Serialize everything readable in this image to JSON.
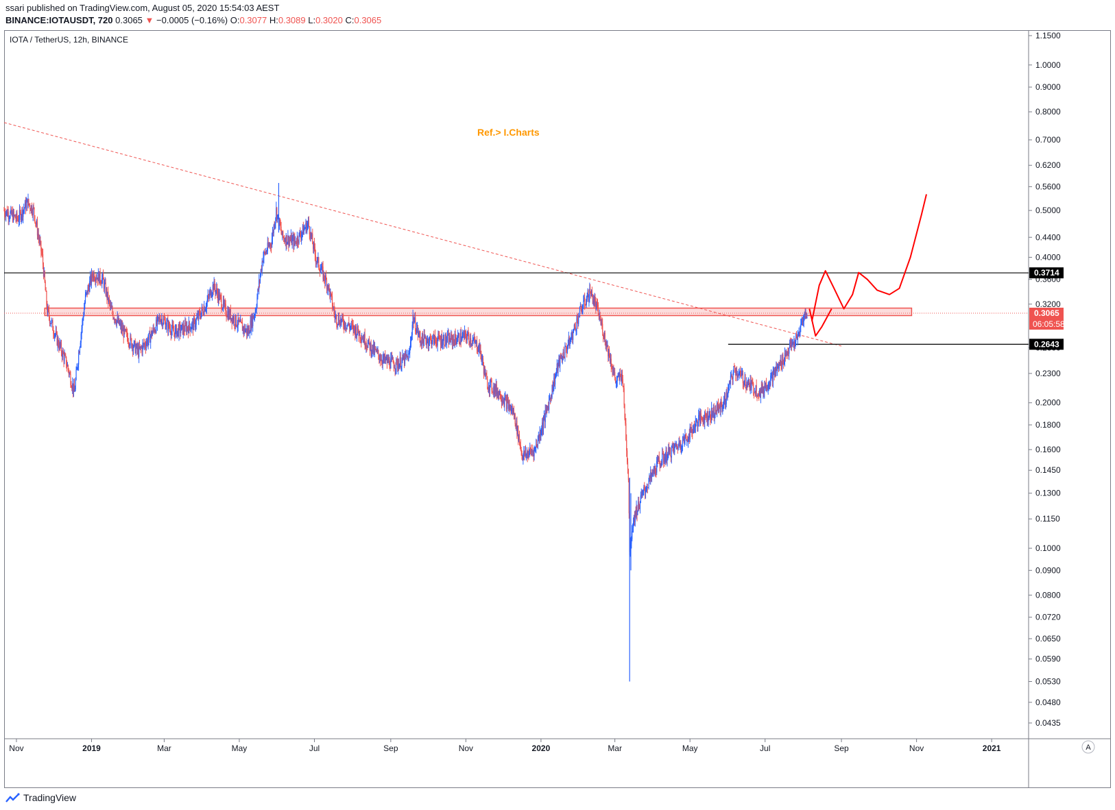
{
  "header": {
    "published": "ssari published on TradingView.com, August 05, 2020 15:54:03 AEST",
    "symbol": "BINANCE:IOTAUSDT, 720",
    "last": "0.3065",
    "change_arrow": "▼",
    "change": "−0.0005 (−0.16%)",
    "o_label": "O:",
    "o_value": "0.3077",
    "h_label": "H:",
    "h_value": "0.3089",
    "l_label": "L:",
    "l_value": "0.3020",
    "c_label": "C:",
    "c_value": "0.3065"
  },
  "footer": {
    "brand": "TradingView"
  },
  "chart_data": {
    "type": "candlestick",
    "title": "IOTA / TetherUS, 12h, BINANCE",
    "annotation": "Ref.> I.Charts",
    "yscale": "log",
    "ylim": [
      0.04,
      1.2
    ],
    "y_ticks": [
      "1.1500",
      "1.0000",
      "0.9000",
      "0.8000",
      "0.7000",
      "0.6200",
      "0.5600",
      "0.5000",
      "0.4400",
      "0.4000",
      "0.3600",
      "0.3200",
      "0.2600",
      "0.2300",
      "0.2000",
      "0.1800",
      "0.1600",
      "0.1450",
      "0.1300",
      "0.1150",
      "0.1000",
      "0.0900",
      "0.0800",
      "0.0720",
      "0.0650",
      "0.0590",
      "0.0530",
      "0.0480",
      "0.0435"
    ],
    "y_tick_values": [
      1.15,
      1.0,
      0.9,
      0.8,
      0.7,
      0.62,
      0.56,
      0.5,
      0.44,
      0.4,
      0.36,
      0.32,
      0.26,
      0.23,
      0.2,
      0.18,
      0.16,
      0.145,
      0.13,
      0.115,
      0.1,
      0.09,
      0.08,
      0.072,
      0.065,
      0.059,
      0.053,
      0.048,
      0.0435
    ],
    "x_ticks": [
      {
        "label": "Nov",
        "date": "2018-11-01",
        "bold": false
      },
      {
        "label": "2019",
        "date": "2019-01-01",
        "bold": true
      },
      {
        "label": "Mar",
        "date": "2019-03-01",
        "bold": false
      },
      {
        "label": "May",
        "date": "2019-05-01",
        "bold": false
      },
      {
        "label": "Jul",
        "date": "2019-07-01",
        "bold": false
      },
      {
        "label": "Sep",
        "date": "2019-09-01",
        "bold": false
      },
      {
        "label": "Nov",
        "date": "2019-11-01",
        "bold": false
      },
      {
        "label": "2020",
        "date": "2020-01-01",
        "bold": true
      },
      {
        "label": "Mar",
        "date": "2020-03-01",
        "bold": false
      },
      {
        "label": "May",
        "date": "2020-05-01",
        "bold": false
      },
      {
        "label": "Jul",
        "date": "2020-07-01",
        "bold": false
      },
      {
        "label": "Sep",
        "date": "2020-09-01",
        "bold": false
      },
      {
        "label": "Nov",
        "date": "2020-11-01",
        "bold": false
      },
      {
        "label": "2021",
        "date": "2021-01-01",
        "bold": true
      }
    ],
    "x_range": [
      "2018-10-22",
      "2021-01-31"
    ],
    "price_path": [
      [
        "2018-10-22",
        0.5
      ],
      [
        "2018-11-02",
        0.48
      ],
      [
        "2018-11-10",
        0.52
      ],
      [
        "2018-11-15",
        0.5
      ],
      [
        "2018-11-22",
        0.4
      ],
      [
        "2018-11-26",
        0.31
      ],
      [
        "2018-12-04",
        0.27
      ],
      [
        "2018-12-12",
        0.24
      ],
      [
        "2018-12-18",
        0.21
      ],
      [
        "2018-12-22",
        0.26
      ],
      [
        "2018-12-27",
        0.33
      ],
      [
        "2019-01-02",
        0.37
      ],
      [
        "2019-01-10",
        0.36
      ],
      [
        "2019-01-17",
        0.31
      ],
      [
        "2019-01-27",
        0.28
      ],
      [
        "2019-02-08",
        0.255
      ],
      [
        "2019-02-16",
        0.27
      ],
      [
        "2019-02-26",
        0.3
      ],
      [
        "2019-03-09",
        0.28
      ],
      [
        "2019-03-25",
        0.29
      ],
      [
        "2019-04-04",
        0.32
      ],
      [
        "2019-04-10",
        0.35
      ],
      [
        "2019-04-20",
        0.31
      ],
      [
        "2019-05-01",
        0.29
      ],
      [
        "2019-05-08",
        0.28
      ],
      [
        "2019-05-14",
        0.31
      ],
      [
        "2019-05-20",
        0.4
      ],
      [
        "2019-05-27",
        0.43
      ],
      [
        "2019-05-31",
        0.5
      ],
      [
        "2019-06-05",
        0.44
      ],
      [
        "2019-06-15",
        0.43
      ],
      [
        "2019-06-26",
        0.47
      ],
      [
        "2019-07-02",
        0.4
      ],
      [
        "2019-07-12",
        0.35
      ],
      [
        "2019-07-18",
        0.3
      ],
      [
        "2019-07-28",
        0.29
      ],
      [
        "2019-08-06",
        0.28
      ],
      [
        "2019-08-16",
        0.26
      ],
      [
        "2019-08-26",
        0.245
      ],
      [
        "2019-09-06",
        0.24
      ],
      [
        "2019-09-16",
        0.25
      ],
      [
        "2019-09-19",
        0.3
      ],
      [
        "2019-09-25",
        0.27
      ],
      [
        "2019-10-08",
        0.27
      ],
      [
        "2019-10-22",
        0.27
      ],
      [
        "2019-11-02",
        0.275
      ],
      [
        "2019-11-12",
        0.26
      ],
      [
        "2019-11-18",
        0.22
      ],
      [
        "2019-11-28",
        0.21
      ],
      [
        "2019-12-10",
        0.19
      ],
      [
        "2019-12-17",
        0.155
      ],
      [
        "2019-12-27",
        0.16
      ],
      [
        "2020-01-05",
        0.19
      ],
      [
        "2020-01-15",
        0.24
      ],
      [
        "2020-01-25",
        0.27
      ],
      [
        "2020-02-02",
        0.31
      ],
      [
        "2020-02-10",
        0.34
      ],
      [
        "2020-02-16",
        0.31
      ],
      [
        "2020-02-24",
        0.26
      ],
      [
        "2020-03-02",
        0.22
      ],
      [
        "2020-03-07",
        0.23
      ],
      [
        "2020-03-12",
        0.14
      ],
      [
        "2020-03-13",
        0.1
      ],
      [
        "2020-03-16",
        0.115
      ],
      [
        "2020-03-24",
        0.13
      ],
      [
        "2020-04-05",
        0.15
      ],
      [
        "2020-04-17",
        0.16
      ],
      [
        "2020-04-29",
        0.17
      ],
      [
        "2020-05-08",
        0.185
      ],
      [
        "2020-05-19",
        0.19
      ],
      [
        "2020-05-29",
        0.2
      ],
      [
        "2020-06-06",
        0.235
      ],
      [
        "2020-06-16",
        0.22
      ],
      [
        "2020-06-27",
        0.21
      ],
      [
        "2020-07-06",
        0.225
      ],
      [
        "2020-07-13",
        0.24
      ],
      [
        "2020-07-21",
        0.26
      ],
      [
        "2020-07-27",
        0.27
      ],
      [
        "2020-08-01",
        0.3
      ],
      [
        "2020-08-04",
        0.3065
      ]
    ],
    "spikes": [
      {
        "date": "2020-03-13",
        "low": 0.053,
        "high": 0.14
      },
      {
        "date": "2020-03-14",
        "low": 0.09,
        "high": 0.13
      },
      {
        "date": "2019-06-02",
        "low": 0.45,
        "high": 0.57
      }
    ],
    "horizontal_levels": [
      {
        "value": 0.3714,
        "label": "0.3714",
        "color": "#000000",
        "from": "2018-10-22",
        "to": "2021-01-31"
      },
      {
        "value": 0.2643,
        "label": "0.2643",
        "color": "#000000",
        "from": "2020-06-01",
        "to": "2021-01-31"
      }
    ],
    "current_price": {
      "value": 0.3065,
      "label": "0.3065",
      "countdown": "06:05:58"
    },
    "zone": {
      "from": "2018-11-24",
      "to": "2020-10-28",
      "low": 0.303,
      "high": 0.314
    },
    "trendline": {
      "start": [
        "2018-10-22",
        0.76
      ],
      "end": [
        "2020-09-01",
        0.262
      ]
    },
    "projection": [
      [
        "2020-08-08",
        0.295
      ],
      [
        "2020-08-14",
        0.35
      ],
      [
        "2020-08-19",
        0.375
      ],
      [
        "2020-08-26",
        0.345
      ],
      [
        "2020-09-03",
        0.313
      ],
      [
        "2020-09-10",
        0.335
      ],
      [
        "2020-09-15",
        0.372
      ],
      [
        "2020-09-22",
        0.36
      ],
      [
        "2020-09-30",
        0.342
      ],
      [
        "2020-10-10",
        0.335
      ],
      [
        "2020-10-18",
        0.345
      ],
      [
        "2020-10-27",
        0.4
      ],
      [
        "2020-11-05",
        0.49
      ],
      [
        "2020-11-09",
        0.54
      ]
    ],
    "projection2": [
      [
        "2020-08-06",
        0.313
      ],
      [
        "2020-08-11",
        0.275
      ],
      [
        "2020-08-16",
        0.287
      ],
      [
        "2020-08-24",
        0.313
      ]
    ],
    "colors": {
      "up": "#2962ff",
      "down": "#ef5350",
      "drawing": "#ff0000",
      "trend": "#ef5350",
      "annotation": "#ff9800",
      "zone": "#f9c0c0",
      "zone_border": "#ef5350"
    },
    "auto_scale_button": "A"
  }
}
